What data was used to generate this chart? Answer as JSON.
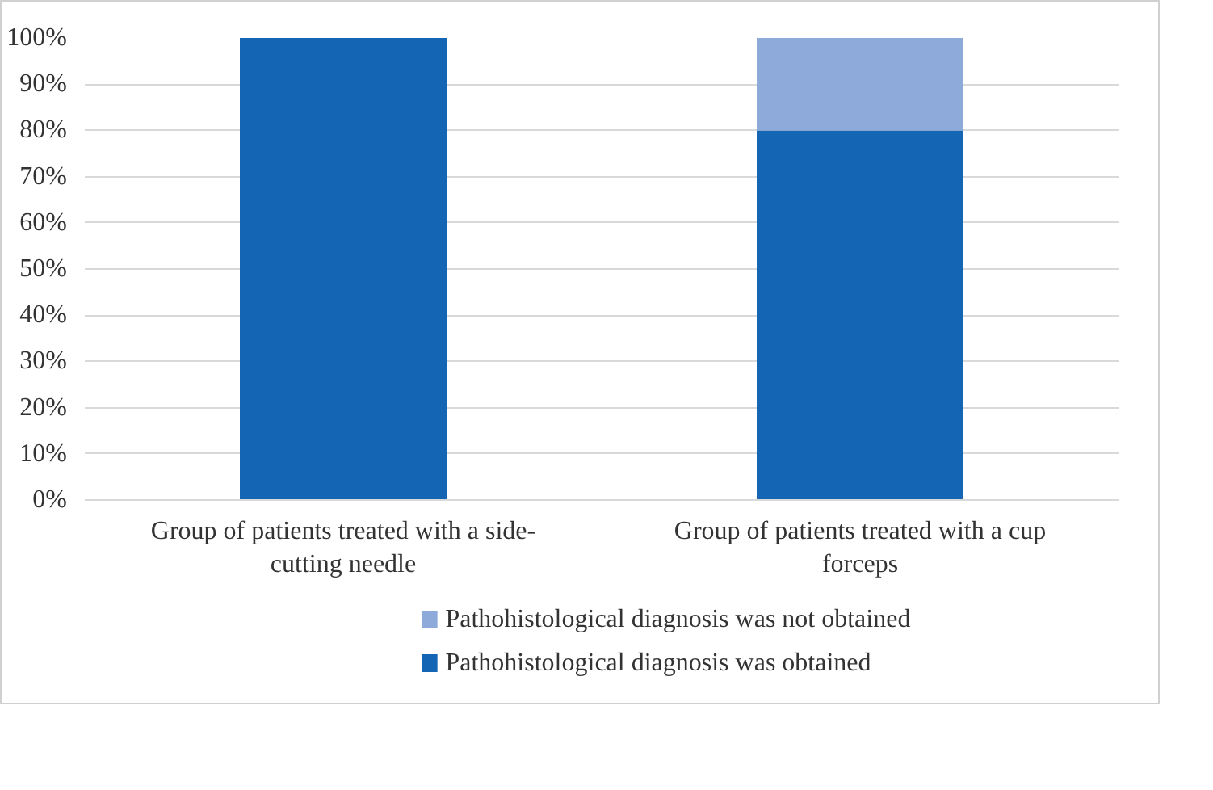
{
  "chart_data": {
    "type": "bar",
    "stacked": true,
    "categories": [
      "Group of patients treated with a side-cutting needle",
      "Group of patients treated with a cup forceps"
    ],
    "series": [
      {
        "name": "Pathohistological diagnosis was obtained",
        "color": "#1565b5",
        "values": [
          100,
          80
        ]
      },
      {
        "name": "Pathohistological diagnosis was not obtained",
        "color": "#8eaadb",
        "values": [
          0,
          20
        ]
      }
    ],
    "ylim": [
      0,
      100
    ],
    "yticks": [
      {
        "value": 0,
        "label": "0%"
      },
      {
        "value": 10,
        "label": "10%"
      },
      {
        "value": 20,
        "label": "20%"
      },
      {
        "value": 30,
        "label": "30%"
      },
      {
        "value": 40,
        "label": "40%"
      },
      {
        "value": 50,
        "label": "50%"
      },
      {
        "value": 60,
        "label": "60%"
      },
      {
        "value": 70,
        "label": "70%"
      },
      {
        "value": 80,
        "label": "80%"
      },
      {
        "value": 90,
        "label": "90%"
      },
      {
        "value": 100,
        "label": "100%"
      }
    ],
    "grid": "y",
    "legend": "bottom"
  }
}
